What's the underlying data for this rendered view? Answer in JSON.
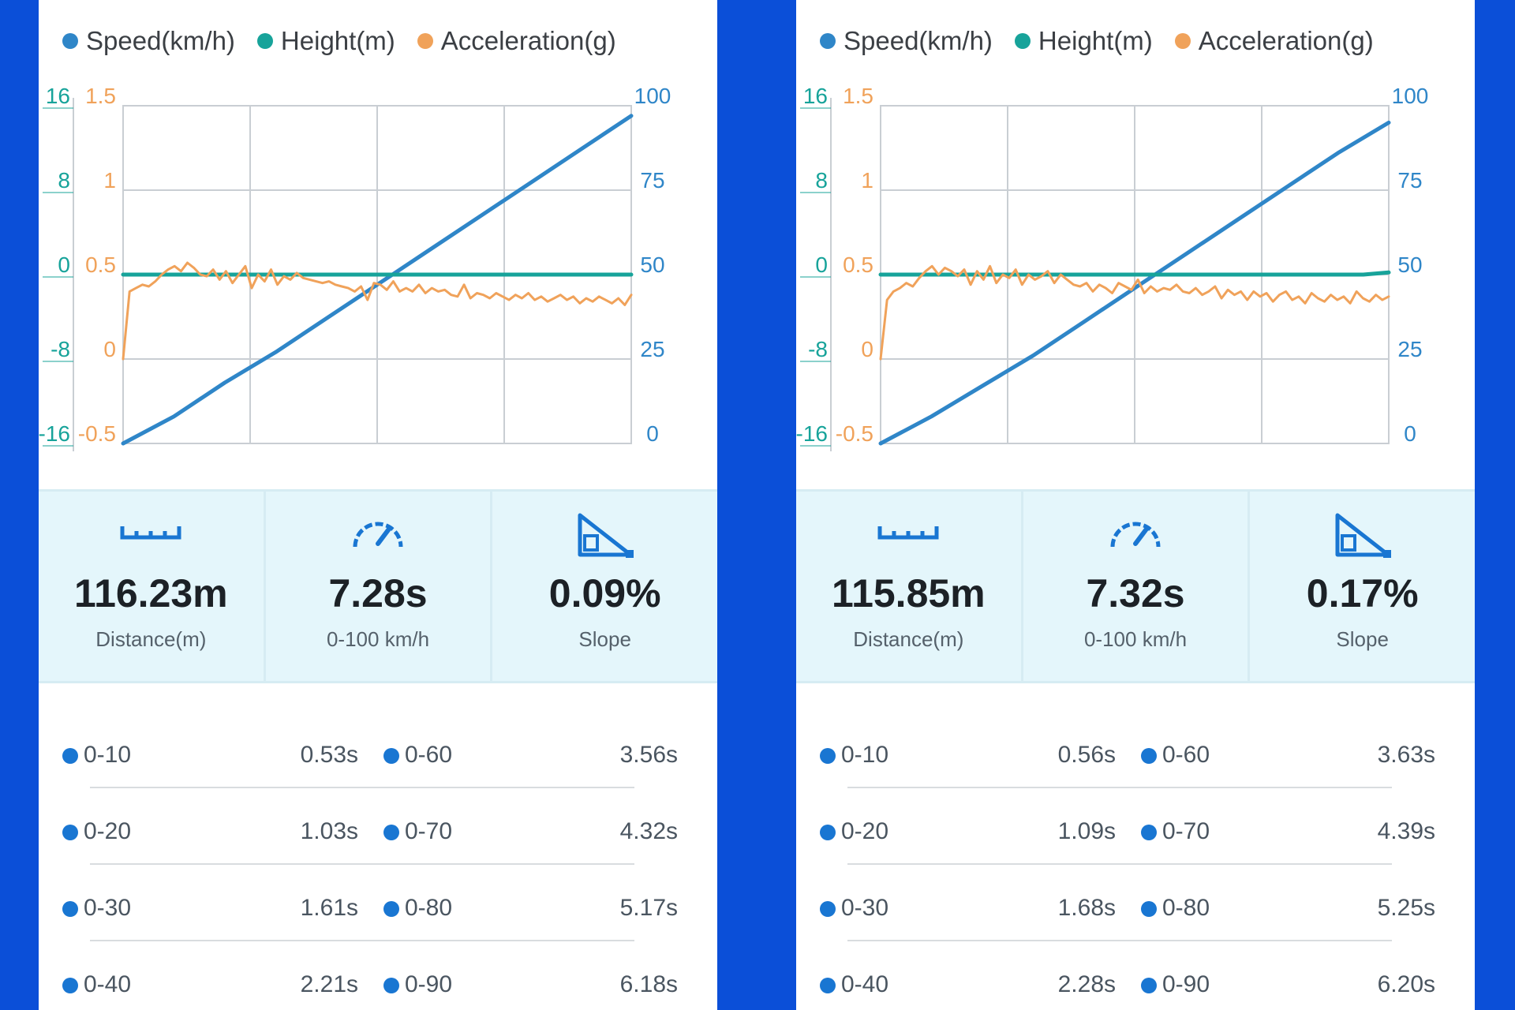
{
  "colors": {
    "speed": "#2f86c8",
    "height": "#17a39a",
    "acceleration": "#f0a25a",
    "accent": "#1976d2",
    "background": "#0b4fd8"
  },
  "panels": [
    {
      "legend": [
        {
          "label": "Speed(km/h)",
          "color": "#2f86c8"
        },
        {
          "label": "Height(m)",
          "color": "#17a39a"
        },
        {
          "label": "Acceleration(g)",
          "color": "#f0a25a"
        }
      ],
      "chart_data": {
        "type": "line",
        "y_axes": {
          "height_ticks": [
            "16",
            "8",
            "0",
            "-8",
            "-16"
          ],
          "acceleration_ticks": [
            "1.5",
            "1",
            "0.5",
            "0",
            "-0.5"
          ],
          "speed_ticks": [
            "100",
            "75",
            "50",
            "25",
            "0"
          ]
        },
        "series": [
          {
            "name": "Speed(km/h)",
            "axis": "speed",
            "ylim": [
              0,
              100
            ],
            "x": [
              0,
              0.1,
              0.2,
              0.3,
              0.4,
              0.5,
              0.6,
              0.7,
              0.8,
              0.9,
              1.0
            ],
            "values": [
              0,
              8,
              18,
              27,
              37,
              47,
              57,
              67,
              77,
              87,
              97
            ]
          },
          {
            "name": "Height(m)",
            "axis": "height",
            "ylim": [
              -16,
              16
            ],
            "x": [
              0,
              1.0
            ],
            "values": [
              0,
              0
            ]
          },
          {
            "name": "Acceleration(g)",
            "axis": "acceleration",
            "ylim": [
              -0.5,
              1.5
            ],
            "x_count": 80,
            "values": [
              0.0,
              0.4,
              0.42,
              0.44,
              0.43,
              0.46,
              0.5,
              0.53,
              0.55,
              0.52,
              0.57,
              0.54,
              0.5,
              0.49,
              0.53,
              0.47,
              0.52,
              0.45,
              0.5,
              0.55,
              0.42,
              0.5,
              0.46,
              0.53,
              0.44,
              0.49,
              0.47,
              0.51,
              0.48,
              0.47,
              0.46,
              0.45,
              0.46,
              0.44,
              0.43,
              0.42,
              0.4,
              0.43,
              0.35,
              0.45,
              0.44,
              0.41,
              0.46,
              0.4,
              0.42,
              0.4,
              0.44,
              0.39,
              0.42,
              0.4,
              0.41,
              0.38,
              0.37,
              0.44,
              0.36,
              0.39,
              0.38,
              0.36,
              0.39,
              0.37,
              0.35,
              0.38,
              0.36,
              0.39,
              0.35,
              0.37,
              0.34,
              0.36,
              0.38,
              0.35,
              0.37,
              0.33,
              0.36,
              0.34,
              0.37,
              0.35,
              0.33,
              0.36,
              0.32,
              0.38
            ]
          }
        ]
      },
      "stats": [
        {
          "icon": "ruler-icon",
          "value": "116.23m",
          "label": "Distance(m)"
        },
        {
          "icon": "speedometer-icon",
          "value": "7.28s",
          "label": "0-100 km/h"
        },
        {
          "icon": "slope-icon",
          "value": "0.09%",
          "label": "Slope"
        }
      ],
      "splits": [
        {
          "left_label": "0-10",
          "left_time": "0.53s",
          "right_label": "0-60",
          "right_time": "3.56s"
        },
        {
          "left_label": "0-20",
          "left_time": "1.03s",
          "right_label": "0-70",
          "right_time": "4.32s"
        },
        {
          "left_label": "0-30",
          "left_time": "1.61s",
          "right_label": "0-80",
          "right_time": "5.17s"
        },
        {
          "left_label": "0-40",
          "left_time": "2.21s",
          "right_label": "0-90",
          "right_time": "6.18s"
        }
      ]
    },
    {
      "legend": [
        {
          "label": "Speed(km/h)",
          "color": "#2f86c8"
        },
        {
          "label": "Height(m)",
          "color": "#17a39a"
        },
        {
          "label": "Acceleration(g)",
          "color": "#f0a25a"
        }
      ],
      "chart_data": {
        "type": "line",
        "y_axes": {
          "height_ticks": [
            "16",
            "8",
            "0",
            "-8",
            "-16"
          ],
          "acceleration_ticks": [
            "1.5",
            "1",
            "0.5",
            "0",
            "-0.5"
          ],
          "speed_ticks": [
            "100",
            "75",
            "50",
            "25",
            "0"
          ]
        },
        "series": [
          {
            "name": "Speed(km/h)",
            "axis": "speed",
            "ylim": [
              0,
              100
            ],
            "x": [
              0,
              0.1,
              0.2,
              0.3,
              0.4,
              0.5,
              0.6,
              0.7,
              0.8,
              0.9,
              1.0
            ],
            "values": [
              0,
              8,
              17,
              26,
              36,
              46,
              56,
              66,
              76,
              86,
              95
            ]
          },
          {
            "name": "Height(m)",
            "axis": "height",
            "ylim": [
              -16,
              16
            ],
            "x": [
              0,
              0.95,
              1.0
            ],
            "values": [
              0,
              0,
              0.2
            ]
          },
          {
            "name": "Acceleration(g)",
            "axis": "acceleration",
            "ylim": [
              -0.5,
              1.5
            ],
            "x_count": 80,
            "values": [
              0.0,
              0.35,
              0.4,
              0.42,
              0.45,
              0.43,
              0.48,
              0.52,
              0.55,
              0.5,
              0.54,
              0.52,
              0.49,
              0.53,
              0.44,
              0.52,
              0.47,
              0.55,
              0.45,
              0.5,
              0.48,
              0.53,
              0.44,
              0.5,
              0.47,
              0.49,
              0.52,
              0.45,
              0.5,
              0.47,
              0.44,
              0.43,
              0.45,
              0.4,
              0.44,
              0.42,
              0.39,
              0.45,
              0.43,
              0.41,
              0.47,
              0.39,
              0.43,
              0.4,
              0.42,
              0.41,
              0.44,
              0.4,
              0.39,
              0.42,
              0.38,
              0.4,
              0.43,
              0.36,
              0.41,
              0.38,
              0.4,
              0.35,
              0.4,
              0.37,
              0.39,
              0.34,
              0.38,
              0.4,
              0.35,
              0.37,
              0.33,
              0.39,
              0.36,
              0.34,
              0.38,
              0.35,
              0.37,
              0.33,
              0.4,
              0.36,
              0.34,
              0.38,
              0.35,
              0.37
            ]
          }
        ]
      },
      "stats": [
        {
          "icon": "ruler-icon",
          "value": "115.85m",
          "label": "Distance(m)"
        },
        {
          "icon": "speedometer-icon",
          "value": "7.32s",
          "label": "0-100 km/h"
        },
        {
          "icon": "slope-icon",
          "value": "0.17%",
          "label": "Slope"
        }
      ],
      "splits": [
        {
          "left_label": "0-10",
          "left_time": "0.56s",
          "right_label": "0-60",
          "right_time": "3.63s"
        },
        {
          "left_label": "0-20",
          "left_time": "1.09s",
          "right_label": "0-70",
          "right_time": "4.39s"
        },
        {
          "left_label": "0-30",
          "left_time": "1.68s",
          "right_label": "0-80",
          "right_time": "5.25s"
        },
        {
          "left_label": "0-40",
          "left_time": "2.28s",
          "right_label": "0-90",
          "right_time": "6.20s"
        }
      ]
    }
  ]
}
